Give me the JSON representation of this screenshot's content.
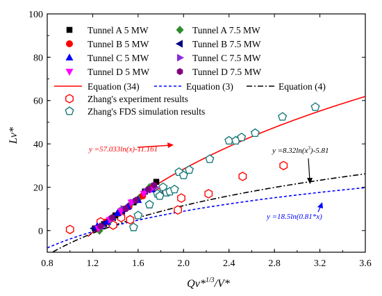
{
  "chart_data": {
    "type": "scatter",
    "xlabel": "Qv*1/3/V*",
    "xlabel_base": "Qv*",
    "xlabel_sup": "1/3",
    "xlabel_tail": "/V*",
    "ylabel": "Lv*",
    "xlim": [
      0.8,
      3.6
    ],
    "ylim": [
      -10,
      100
    ],
    "xticks": [
      "0.8",
      "1.2",
      "1.6",
      "2.0",
      "2.4",
      "2.8",
      "3.2",
      "3.6"
    ],
    "yticks": [
      "0",
      "20",
      "40",
      "60",
      "80",
      "100"
    ],
    "legend_position": "top-left",
    "series": [
      {
        "name": "Tunnel A 5 MW",
        "marker": "square",
        "color": "#000000",
        "x": [
          1.22,
          1.3,
          1.4,
          1.48,
          1.56,
          1.66,
          1.76
        ],
        "y": [
          1,
          3,
          7,
          10,
          13,
          18,
          22.5
        ]
      },
      {
        "name": "Tunnel A 7.5 MW",
        "marker": "diamond",
        "color": "#2e8b2e",
        "x": [
          1.26,
          1.34,
          1.44,
          1.53,
          1.61,
          1.7
        ],
        "y": [
          0,
          4,
          9,
          12,
          15,
          20
        ]
      },
      {
        "name": "Tunnel B 5 MW",
        "marker": "circle",
        "color": "#ff0000",
        "x": [
          1.23,
          1.32,
          1.43,
          1.52,
          1.64,
          1.73
        ],
        "y": [
          1,
          4,
          8,
          11,
          16,
          20
        ]
      },
      {
        "name": "Tunnel B 7.5 MW",
        "marker": "triangle-left",
        "color": "#000080",
        "x": [
          1.21,
          1.29,
          1.38,
          1.46,
          1.57,
          1.68
        ],
        "y": [
          1,
          3,
          6,
          9,
          14,
          19
        ]
      },
      {
        "name": "Tunnel C 5 MW",
        "marker": "triangle-up",
        "color": "#0000ff",
        "x": [
          1.24,
          1.33,
          1.42,
          1.51,
          1.6,
          1.72
        ],
        "y": [
          2,
          4,
          8,
          11,
          14,
          19
        ]
      },
      {
        "name": "Tunnel C 7.5 MW",
        "marker": "triangle-right",
        "color": "#8a2be2",
        "x": [
          1.28,
          1.36,
          1.47,
          1.55,
          1.67,
          1.75
        ],
        "y": [
          2,
          5,
          10,
          13,
          18,
          20
        ]
      },
      {
        "name": "Tunnel D 5 MW",
        "marker": "triangle-down",
        "color": "#ff00ff",
        "x": [
          1.25,
          1.35,
          1.45,
          1.54,
          1.65,
          1.71
        ],
        "y": [
          1,
          5,
          9,
          13,
          17,
          19
        ]
      },
      {
        "name": "Tunnel D 7.5 MW",
        "marker": "hexagon",
        "color": "#800080",
        "x": [
          1.27,
          1.37,
          1.49,
          1.58,
          1.69,
          1.74
        ],
        "y": [
          2,
          6,
          10,
          14,
          19,
          21
        ]
      },
      {
        "name": "Zhang's experiment results",
        "marker": "hexagon-open",
        "color": "#ff0000",
        "x": [
          1.0,
          1.27,
          1.38,
          1.45,
          1.53,
          1.78,
          1.95,
          1.98,
          2.22,
          2.52,
          2.88
        ],
        "y": [
          0.5,
          4,
          2.5,
          6,
          5,
          17.5,
          9.5,
          15,
          17,
          25,
          30
        ]
      },
      {
        "name": "Zhang's FDS simulation results",
        "marker": "pentagon-open",
        "color": "#1a7a7a",
        "x": [
          1.56,
          1.6,
          1.7,
          1.72,
          1.77,
          1.79,
          1.82,
          1.85,
          1.88,
          1.92,
          1.96,
          2.0,
          2.05,
          2.23,
          2.4,
          2.46,
          2.51,
          2.63,
          2.87,
          3.16
        ],
        "y": [
          1.5,
          7,
          12,
          20,
          17,
          16,
          20,
          17.5,
          18,
          19,
          27,
          25.5,
          28,
          33,
          41.5,
          41.5,
          43,
          45,
          52.5,
          57
        ]
      }
    ],
    "curves": [
      {
        "name": "Equation (34)",
        "style": "solid",
        "color": "#ff0000",
        "a": 57.033,
        "k": 1.0,
        "b": -11.161,
        "xmin": 1.16,
        "xmax": 3.6
      },
      {
        "name": "Equation (3)",
        "style": "dashed",
        "color": "#0000ff",
        "a": 18.5,
        "k": 0.81,
        "b": 0,
        "xmin": 0.8,
        "xmax": 3.6
      },
      {
        "name": "Equation (4)",
        "style": "dashdot",
        "color": "#000000",
        "a": 24.96,
        "k": 1.0,
        "b": -5.81,
        "xmin": 0.85,
        "xmax": 3.6
      }
    ],
    "annotations": [
      {
        "text": "y =57.033ln(x)-11.161",
        "color": "#ff0000"
      },
      {
        "text": "y =8.32ln(x3)-5.81",
        "base": "y =8.32ln(x",
        "sup": "3",
        "tail": ")-5.81",
        "color": "#000000"
      },
      {
        "text": "y =18.5ln(0.81*x)",
        "color": "#0000ff"
      }
    ]
  }
}
